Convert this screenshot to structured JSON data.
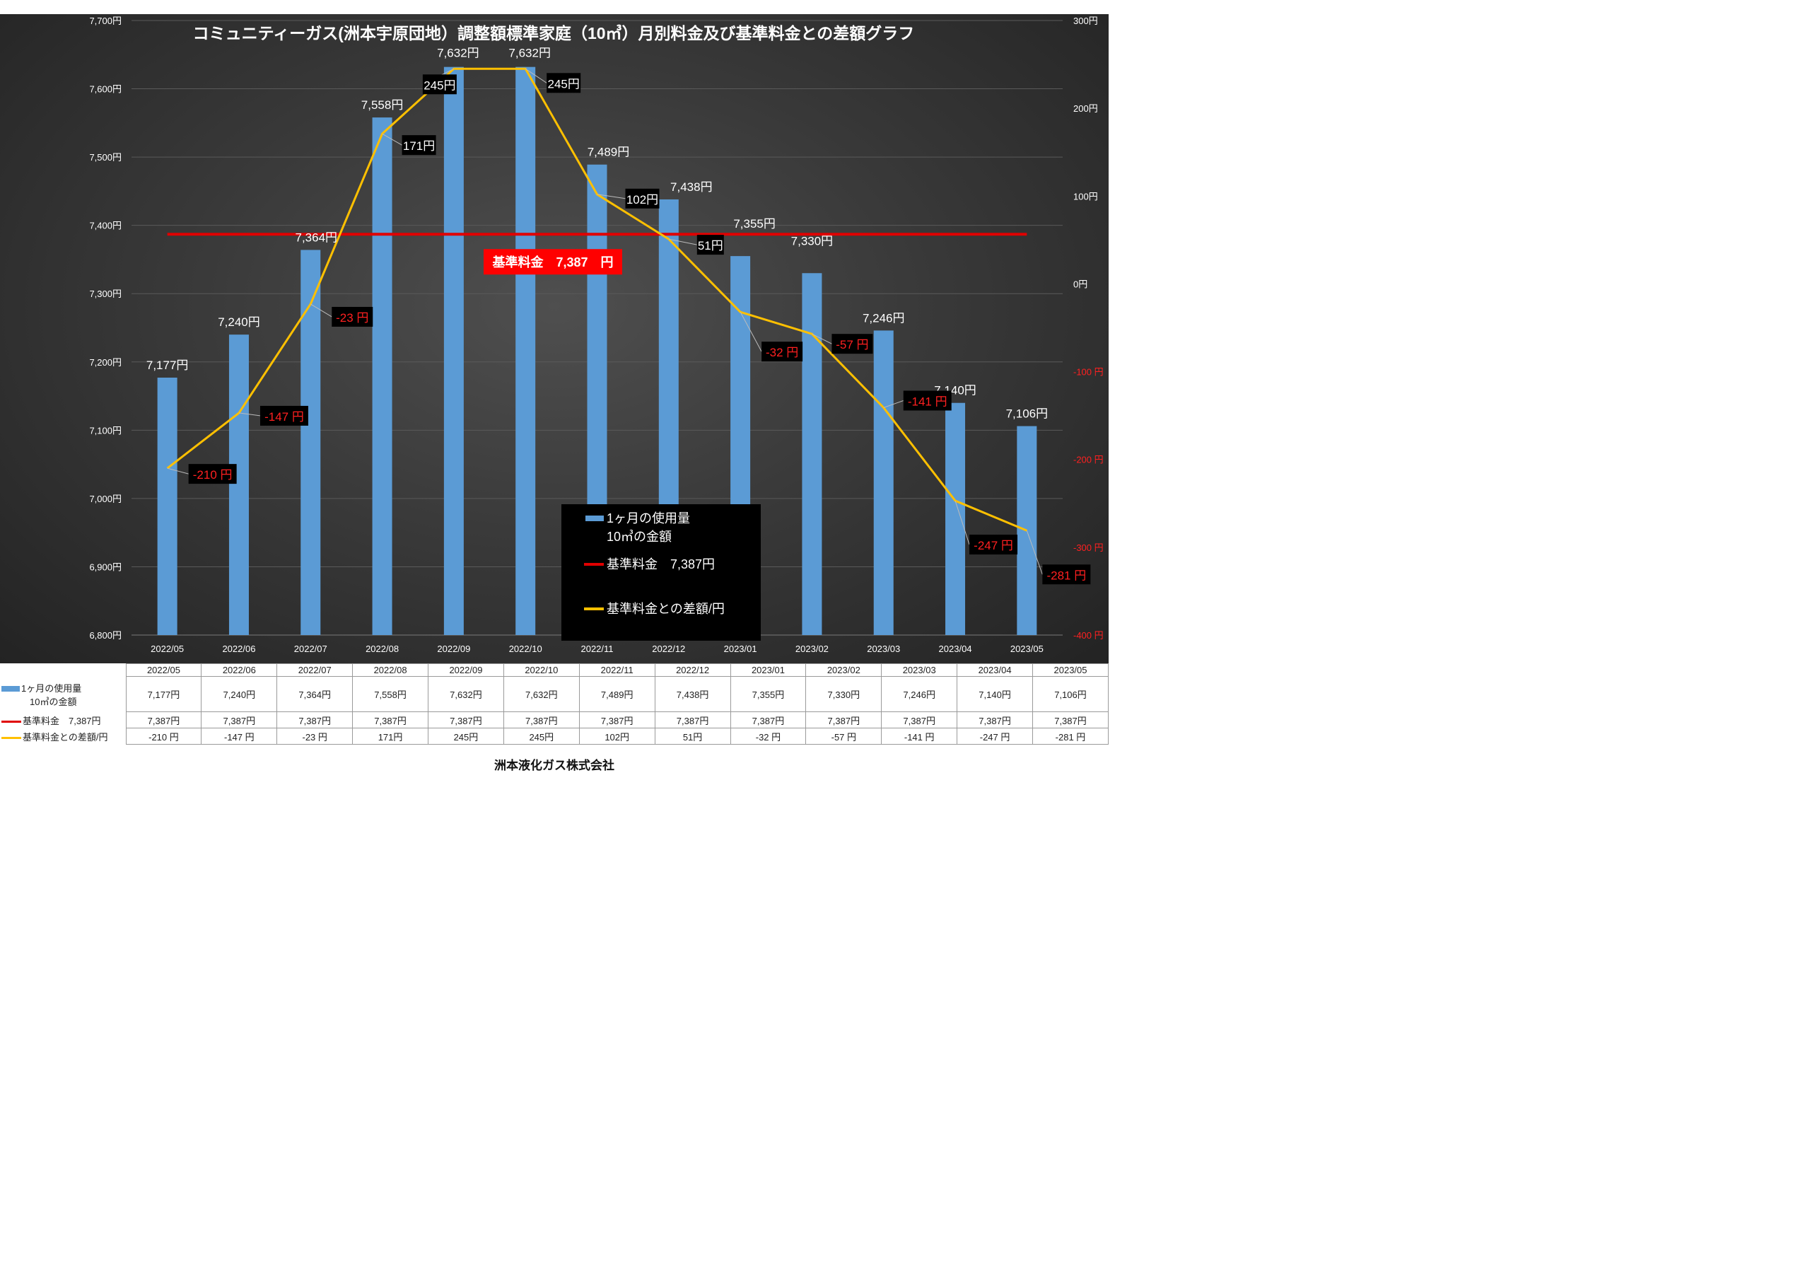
{
  "chart_data": {
    "type": "bar",
    "title": "コミュニティーガス(洲本宇原団地）調整額標準家庭（10㎥）月別料金及び基準料金との差額グラフ",
    "categories": [
      "2022/05",
      "2022/06",
      "2022/07",
      "2022/08",
      "2022/09",
      "2022/10",
      "2022/11",
      "2022/12",
      "2023/01",
      "2023/02",
      "2023/03",
      "2023/04",
      "2023/05"
    ],
    "series": [
      {
        "name": "1ヶ月の使用量\n10㎥の金額",
        "type": "bar",
        "axis": "left",
        "values": [
          7177,
          7240,
          7364,
          7558,
          7632,
          7632,
          7489,
          7438,
          7355,
          7330,
          7246,
          7140,
          7106
        ],
        "labels": [
          "7,177円",
          "7,240円",
          "7,364円",
          "7,558円",
          "7,632円",
          "7,632円",
          "7,489円",
          "7,438円",
          "7,355円",
          "7,330円",
          "7,246円",
          "7,140円",
          "7,106円"
        ],
        "color": "#5b9bd5"
      },
      {
        "name": "基準料金　7,387円",
        "type": "line",
        "axis": "left",
        "values": [
          7387,
          7387,
          7387,
          7387,
          7387,
          7387,
          7387,
          7387,
          7387,
          7387,
          7387,
          7387,
          7387
        ],
        "color": "#e00000"
      },
      {
        "name": "基準料金との差額/円",
        "type": "line",
        "axis": "right",
        "values": [
          -210,
          -147,
          -23,
          171,
          245,
          245,
          102,
          51,
          -32,
          -57,
          -141,
          -247,
          -281
        ],
        "labels": [
          "-210 円",
          "-147 円",
          "-23 円",
          "171円",
          "245円",
          "245円",
          "102円",
          "51円",
          "-32 円",
          "-57 円",
          "-141 円",
          "-247 円",
          "-281 円"
        ],
        "color": "#ffc000"
      }
    ],
    "y_left": {
      "min": 6800,
      "max": 7700,
      "step": 100,
      "ticks": [
        "6,800円",
        "6,900円",
        "7,000円",
        "7,100円",
        "7,200円",
        "7,300円",
        "7,400円",
        "7,500円",
        "7,600円",
        "7,700円"
      ]
    },
    "y_right": {
      "min": -400,
      "max": 300,
      "step": 100,
      "ticks": [
        "-400 円",
        "-300 円",
        "-200 円",
        "-100 円",
        "0円",
        "100円",
        "200円",
        "300円"
      ]
    },
    "base_label": "基準料金　7,387　円",
    "legend": {
      "position": "bottom-center",
      "items": [
        {
          "line1": "1ヶ月の使用量",
          "line2": "10㎥の金額"
        },
        {
          "line1": "基準料金　7,387円"
        },
        {
          "line1": "基準料金との差額/円"
        }
      ]
    },
    "table": {
      "header": [
        "2022/05",
        "2022/06",
        "2022/07",
        "2022/08",
        "2022/09",
        "2022/10",
        "2022/11",
        "2022/12",
        "2023/01",
        "2023/02",
        "2023/03",
        "2023/04",
        "2023/05"
      ],
      "rows": [
        {
          "label1": "1ヶ月の使用量",
          "label2": "10㎥の金額",
          "cells": [
            "7,177円",
            "7,240円",
            "7,364円",
            "7,558円",
            "7,632円",
            "7,632円",
            "7,489円",
            "7,438円",
            "7,355円",
            "7,330円",
            "7,246円",
            "7,140円",
            "7,106円"
          ]
        },
        {
          "label1": "基準料金　7,387円",
          "cells": [
            "7,387円",
            "7,387円",
            "7,387円",
            "7,387円",
            "7,387円",
            "7,387円",
            "7,387円",
            "7,387円",
            "7,387円",
            "7,387円",
            "7,387円",
            "7,387円",
            "7,387円"
          ]
        },
        {
          "label1": "基準料金との差額/円",
          "cells": [
            "-210 円",
            "-147 円",
            "-23 円",
            "171円",
            "245円",
            "245円",
            "102円",
            "51円",
            "-32 円",
            "-57 円",
            "-141 円",
            "-247 円",
            "-281 円"
          ]
        }
      ]
    }
  },
  "footer": "洲本液化ガス株式会社"
}
